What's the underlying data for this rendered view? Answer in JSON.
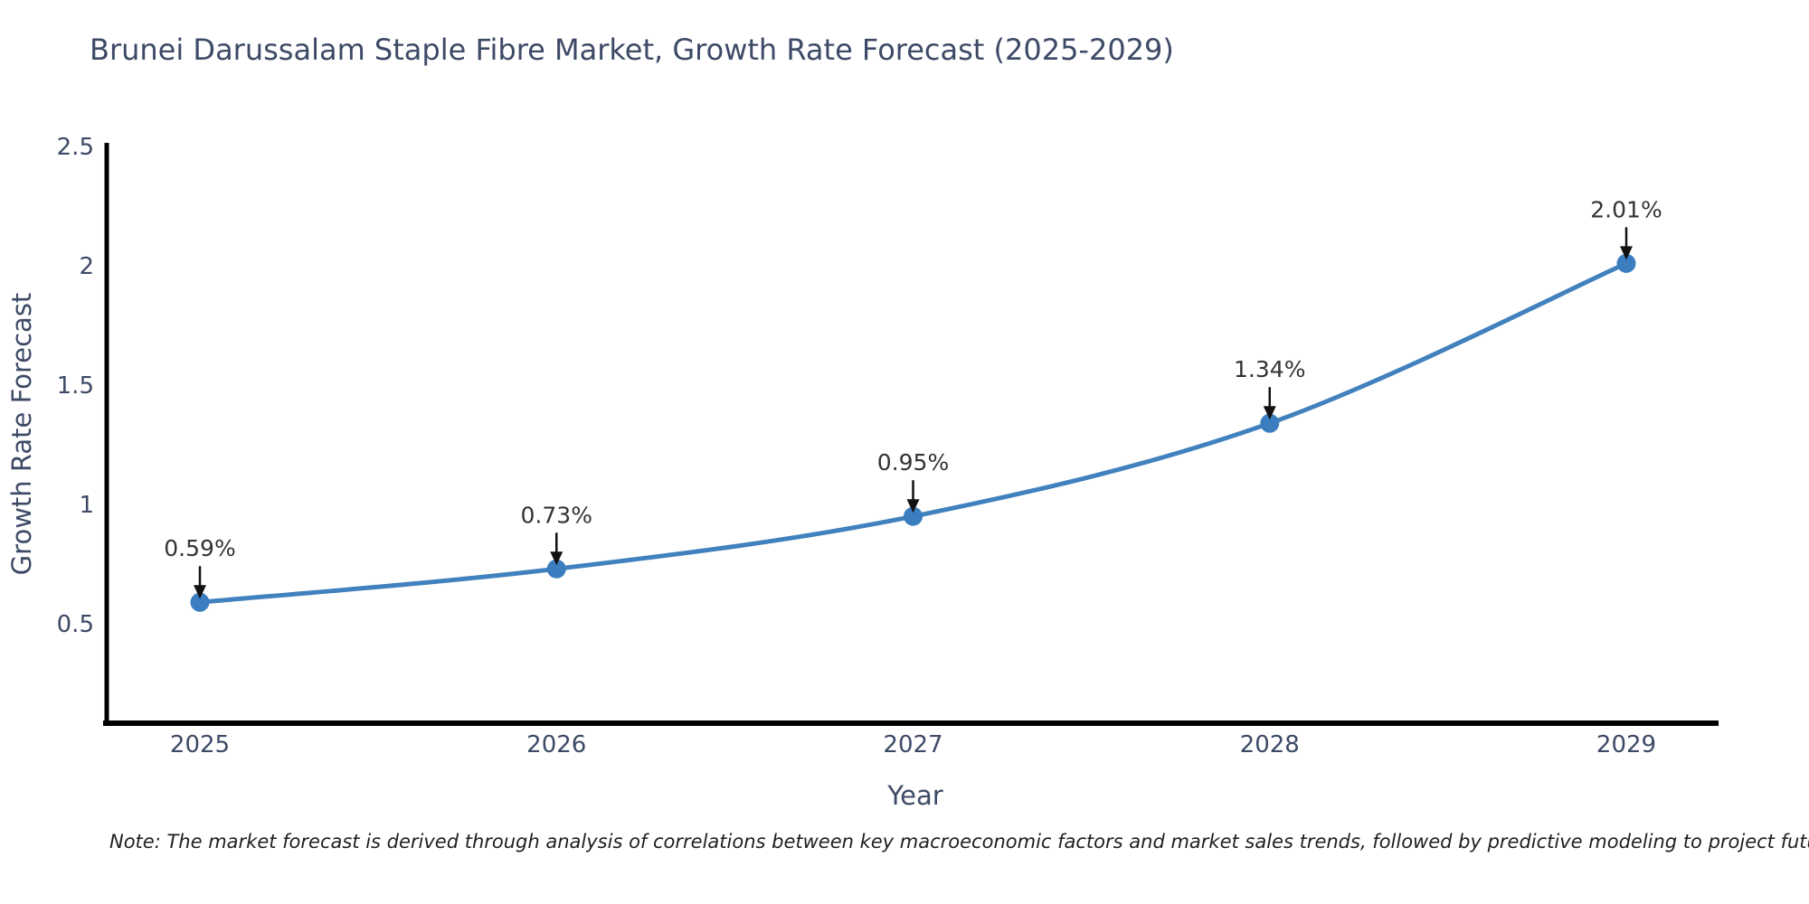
{
  "chart_data": {
    "type": "line",
    "title": "Brunei Darussalam Staple Fibre Market, Growth Rate Forecast (2025-2029)",
    "xlabel": "Year",
    "ylabel": "Growth Rate Forecast",
    "x": [
      2025,
      2026,
      2027,
      2028,
      2029
    ],
    "x_labels": [
      "2025",
      "2026",
      "2027",
      "2028",
      "2029"
    ],
    "values": [
      0.59,
      0.73,
      0.95,
      1.34,
      2.01
    ],
    "point_labels": [
      "0.59%",
      "0.73%",
      "0.95%",
      "1.34%",
      "2.01%"
    ],
    "yticks": [
      0.5,
      1,
      1.5,
      2,
      2.5
    ],
    "ytick_labels": [
      "0.5",
      "1",
      "1.5",
      "2",
      "2.5"
    ],
    "ylim": [
      0.08,
      2.52
    ],
    "grid": false,
    "legend": "none",
    "line_color": "#4181bd",
    "marker_color": "#3a7ebf",
    "annotation_text_color": "#333333",
    "annotation_arrow_color": "#111111",
    "axis_line_color": "#000000",
    "label_color": "#3d4a66"
  },
  "footnote": "Note: The market forecast is derived through analysis of correlations between key macroeconomic factors and market sales trends, followed by predictive modeling to project future sales"
}
